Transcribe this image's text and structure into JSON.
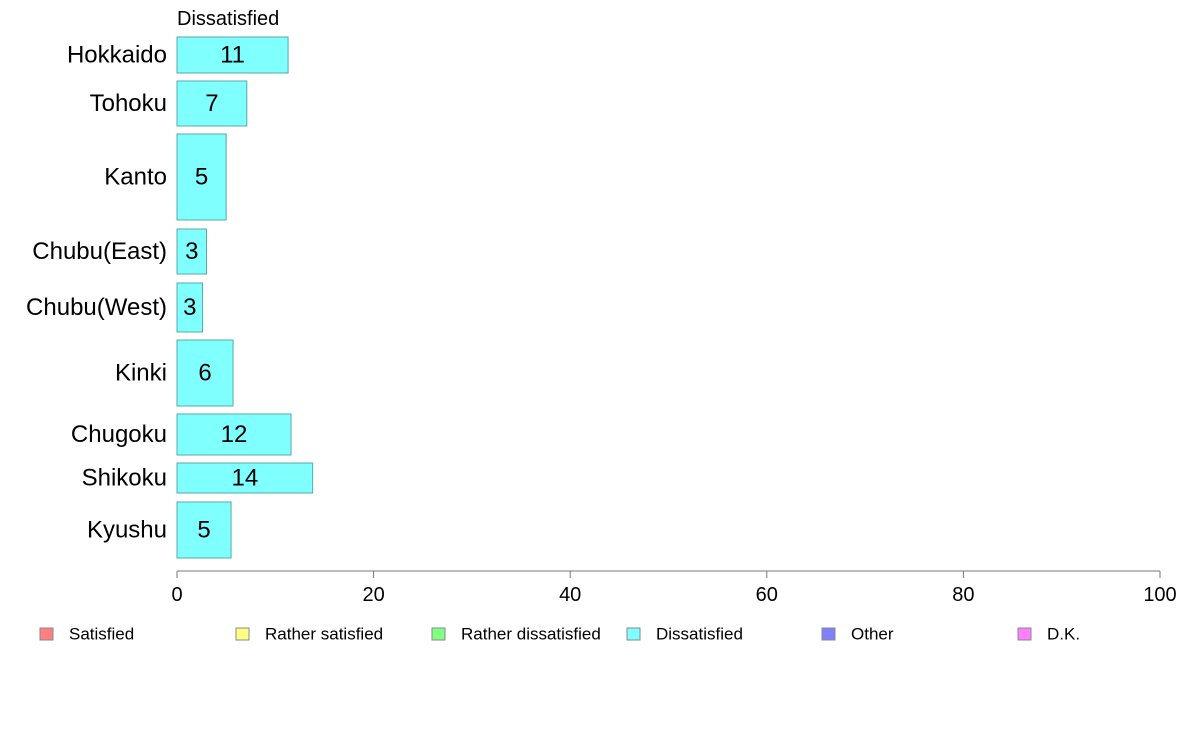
{
  "chart_data": {
    "type": "bar",
    "orientation": "horizontal",
    "stacked": true,
    "panel_label": "Dissatisfied",
    "categories": [
      "Hokkaido",
      "Tohoku",
      "Kanto",
      "Chubu(East)",
      "Chubu(West)",
      "Kinki",
      "Chugoku",
      "Shikoku",
      "Kyushu"
    ],
    "series": [
      {
        "name": "Dissatisfied",
        "color": "#80FFFF",
        "values": [
          11.3,
          7.1,
          5.0,
          3.0,
          2.6,
          5.7,
          11.6,
          13.8,
          5.5
        ],
        "labels": [
          "11",
          "7",
          "5",
          "3",
          "3",
          "6",
          "12",
          "14",
          "5"
        ]
      }
    ],
    "xlim": [
      0,
      100
    ],
    "xticks": [
      "0",
      "20",
      "40",
      "60",
      "80",
      "100"
    ],
    "legend": {
      "placement": "bottom",
      "entries": [
        {
          "label": "Satisfied",
          "color": "#FF8080"
        },
        {
          "label": "Rather satisfied",
          "color": "#FFFF80"
        },
        {
          "label": "Rather dissatisfied",
          "color": "#80FF80"
        },
        {
          "label": "Dissatisfied",
          "color": "#80FFFF"
        },
        {
          "label": "Other",
          "color": "#8080FF"
        },
        {
          "label": "D.K.",
          "color": "#FF80FF"
        }
      ]
    }
  }
}
